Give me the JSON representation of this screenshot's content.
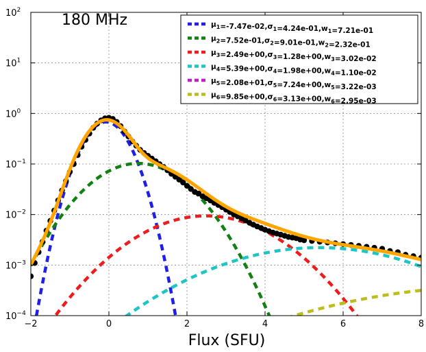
{
  "chart_data": {
    "type": "line",
    "title": "",
    "annotation": "180 MHz",
    "xlabel": "Flux (SFU)",
    "ylabel": "",
    "xlim": [
      -2,
      8
    ],
    "ylim": [
      0.0001,
      100
    ],
    "yscale": "log",
    "grid": true,
    "legend_position": "top-right",
    "x_ticks": [
      {
        "value": -2,
        "label": "−2"
      },
      {
        "value": 0,
        "label": "0"
      },
      {
        "value": 2,
        "label": "2"
      },
      {
        "value": 4,
        "label": "4"
      },
      {
        "value": 6,
        "label": "6"
      },
      {
        "value": 8,
        "label": "8"
      }
    ],
    "y_ticks": [
      {
        "value": 0.0001,
        "base": "10",
        "exp": "−4"
      },
      {
        "value": 0.001,
        "base": "10",
        "exp": "−3"
      },
      {
        "value": 0.01,
        "base": "10",
        "exp": "−2"
      },
      {
        "value": 0.1,
        "base": "10",
        "exp": "−1"
      },
      {
        "value": 1,
        "base": "10",
        "exp": "0"
      },
      {
        "value": 10,
        "base": "10",
        "exp": "1"
      },
      {
        "value": 100,
        "base": "10",
        "exp": "2"
      }
    ],
    "components": [
      {
        "mu": -0.0747,
        "sigma": 0.424,
        "w": 0.721,
        "color": "#1f1fe6",
        "legend": {
          "mu": "-7.47e-02",
          "sigma": "4.24e-01",
          "w": "7.21e-01"
        }
      },
      {
        "mu": 0.752,
        "sigma": 0.901,
        "w": 0.232,
        "color": "#128012",
        "legend": {
          "mu": "7.52e-01",
          "sigma": "9.01e-01",
          "w": "2.32e-01"
        }
      },
      {
        "mu": 2.49,
        "sigma": 1.28,
        "w": 0.0302,
        "color": "#ee1c1c",
        "legend": {
          "mu": "2.49e+00",
          "sigma": "1.28e+00",
          "w": "3.02e-02"
        }
      },
      {
        "mu": 5.39,
        "sigma": 1.98,
        "w": 0.011,
        "color": "#1fc4c4",
        "legend": {
          "mu": "5.39e+00",
          "sigma": "1.98e+00",
          "w": "1.10e-02"
        }
      },
      {
        "mu": 20.8,
        "sigma": 7.24,
        "w": 0.00322,
        "color": "#c21fc2",
        "legend": {
          "mu": "2.08e+01",
          "sigma": "7.24e+00",
          "w": "3.22e-03"
        }
      },
      {
        "mu": 9.85,
        "sigma": 3.13,
        "w": 0.00295,
        "color": "#bdbd1f",
        "legend": {
          "mu": "9.85e+00",
          "sigma": "3.13e+00",
          "w": "2.95e-03"
        }
      }
    ],
    "total_curve_color": "#ffa500",
    "observed_color": "#000000",
    "observed": [
      [
        -2.0,
        0.0006
      ],
      [
        -1.9,
        0.0011
      ],
      [
        -1.8,
        0.0018
      ],
      [
        -1.7,
        0.0029
      ],
      [
        -1.6,
        0.0048
      ],
      [
        -1.5,
        0.0075
      ],
      [
        -1.4,
        0.012
      ],
      [
        -1.3,
        0.019
      ],
      [
        -1.2,
        0.03
      ],
      [
        -1.1,
        0.046
      ],
      [
        -1.0,
        0.07
      ],
      [
        -0.9,
        0.1
      ],
      [
        -0.8,
        0.15
      ],
      [
        -0.7,
        0.22
      ],
      [
        -0.6,
        0.3
      ],
      [
        -0.5,
        0.4
      ],
      [
        -0.4,
        0.52
      ],
      [
        -0.3,
        0.63
      ],
      [
        -0.2,
        0.73
      ],
      [
        -0.1,
        0.8
      ],
      [
        0.0,
        0.82
      ],
      [
        0.1,
        0.78
      ],
      [
        0.2,
        0.68
      ],
      [
        0.3,
        0.56
      ],
      [
        0.4,
        0.44
      ],
      [
        0.5,
        0.35
      ],
      [
        0.6,
        0.28
      ],
      [
        0.7,
        0.23
      ],
      [
        0.8,
        0.19
      ],
      [
        0.9,
        0.165
      ],
      [
        1.0,
        0.145
      ],
      [
        1.1,
        0.128
      ],
      [
        1.2,
        0.113
      ],
      [
        1.3,
        0.099
      ],
      [
        1.4,
        0.087
      ],
      [
        1.5,
        0.075
      ],
      [
        1.6,
        0.064
      ],
      [
        1.7,
        0.056
      ],
      [
        1.8,
        0.049
      ],
      [
        1.9,
        0.043
      ],
      [
        2.0,
        0.037
      ],
      [
        2.1,
        0.032
      ],
      [
        2.2,
        0.028
      ],
      [
        2.3,
        0.026
      ],
      [
        2.4,
        0.023
      ],
      [
        2.5,
        0.021
      ],
      [
        2.6,
        0.019
      ],
      [
        2.7,
        0.017
      ],
      [
        2.8,
        0.0155
      ],
      [
        2.9,
        0.014
      ],
      [
        3.0,
        0.0125
      ],
      [
        3.1,
        0.0112
      ],
      [
        3.2,
        0.01
      ],
      [
        3.3,
        0.0092
      ],
      [
        3.4,
        0.0084
      ],
      [
        3.5,
        0.0076
      ],
      [
        3.6,
        0.0069
      ],
      [
        3.7,
        0.0063
      ],
      [
        3.8,
        0.0058
      ],
      [
        3.9,
        0.0054
      ],
      [
        4.0,
        0.005
      ],
      [
        4.1,
        0.0047
      ],
      [
        4.2,
        0.0044
      ],
      [
        4.3,
        0.0042
      ],
      [
        4.4,
        0.004
      ],
      [
        4.5,
        0.0038
      ],
      [
        4.6,
        0.0036
      ],
      [
        4.7,
        0.0035
      ],
      [
        4.8,
        0.0034
      ],
      [
        4.9,
        0.0032
      ],
      [
        5.0,
        0.0031
      ],
      [
        5.2,
        0.003
      ],
      [
        5.4,
        0.0029
      ],
      [
        5.6,
        0.0028
      ],
      [
        5.8,
        0.0027
      ],
      [
        6.0,
        0.0026
      ],
      [
        6.2,
        0.0025
      ],
      [
        6.4,
        0.0024
      ],
      [
        6.6,
        0.0023
      ],
      [
        6.8,
        0.0022
      ],
      [
        7.0,
        0.0021
      ],
      [
        7.2,
        0.0019
      ],
      [
        7.4,
        0.0018
      ],
      [
        7.6,
        0.0016
      ],
      [
        7.8,
        0.0015
      ],
      [
        8.0,
        0.0014
      ]
    ]
  }
}
